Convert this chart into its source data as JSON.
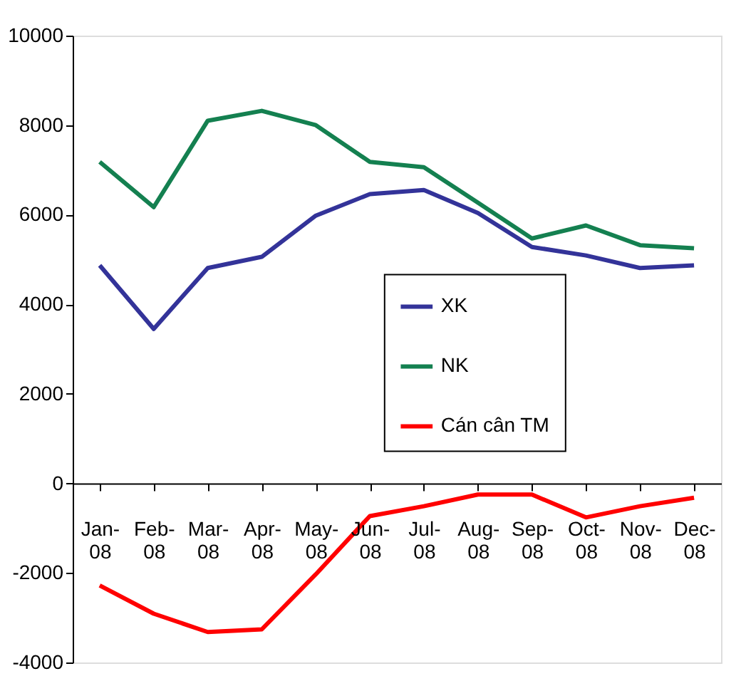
{
  "chart_data": {
    "type": "line",
    "categories": [
      "Jan-08",
      "Feb-08",
      "Mar-08",
      "Apr-08",
      "May-08",
      "Jun-08",
      "Jul-08",
      "Aug-08",
      "Sep-08",
      "Oct-08",
      "Nov-08",
      "Dec-08"
    ],
    "series": [
      {
        "name": "XK",
        "color": "#333399",
        "values": [
          4870,
          3450,
          4810,
          5060,
          5980,
          6460,
          6550,
          6040,
          5280,
          5090,
          4810,
          4870
        ]
      },
      {
        "name": "NK",
        "color": "#148050",
        "values": [
          7180,
          6170,
          8100,
          8320,
          8000,
          7180,
          7060,
          6270,
          5470,
          5760,
          5320,
          5250
        ]
      },
      {
        "name": "Cán cân TM",
        "color": "#ff0000",
        "values": [
          -2280,
          -2910,
          -3320,
          -3260,
          -2030,
          -730,
          -510,
          -250,
          -250,
          -760,
          -510,
          -320
        ]
      }
    ],
    "ylim": [
      -4000,
      10000
    ],
    "yticks": [
      -4000,
      -2000,
      0,
      2000,
      4000,
      6000,
      8000,
      10000
    ],
    "grid": false,
    "legend": "center",
    "marker": "none",
    "line_style": "solid"
  }
}
